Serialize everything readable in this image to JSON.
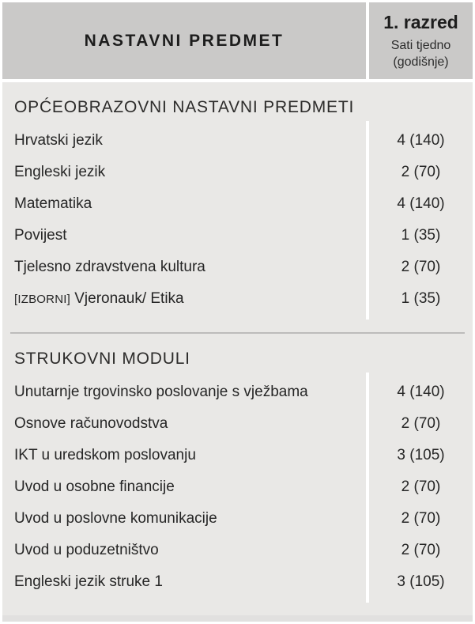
{
  "header": {
    "subject_column_title": "NASTAVNI PREDMET",
    "grade_column": {
      "title": "1. razred",
      "subtitle_line1": "Sati tjedno",
      "subtitle_line2": "(godišnje)"
    }
  },
  "sections": [
    {
      "title": "OPĆEOBRAZOVNI NASTAVNI PREDMETI",
      "rows": [
        {
          "prefix": "",
          "label": "Hrvatski jezik",
          "value": "4 (140)"
        },
        {
          "prefix": "",
          "label": "Engleski jezik",
          "value": "2 (70)"
        },
        {
          "prefix": "",
          "label": "Matematika",
          "value": "4 (140)"
        },
        {
          "prefix": "",
          "label": "Povijest",
          "value": "1 (35)"
        },
        {
          "prefix": "",
          "label": "Tjelesno zdravstvena kultura",
          "value": "2 (70)"
        },
        {
          "prefix": "[IZBORNI]",
          "label": " Vjeronauk/ Etika",
          "value": "1 (35)"
        }
      ]
    },
    {
      "title": "STRUKOVNI MODULI",
      "rows": [
        {
          "prefix": "",
          "label": "Unutarnje trgovinsko poslovanje s vježbama",
          "value": "4 (140)"
        },
        {
          "prefix": "",
          "label": "Osnove računovodstva",
          "value": "2 (70)"
        },
        {
          "prefix": "",
          "label": "IKT u uredskom poslovanju",
          "value": "3 (105)"
        },
        {
          "prefix": "",
          "label": "Uvod u osobne financije",
          "value": "2 (70)"
        },
        {
          "prefix": "",
          "label": "Uvod u poslovne komunikacije",
          "value": "2 (70)"
        },
        {
          "prefix": "",
          "label": "Uvod u poduzetništvo",
          "value": "2 (70)"
        },
        {
          "prefix": "",
          "label": "Engleski jezik struke 1",
          "value": "3 (105)"
        }
      ]
    }
  ],
  "colors": {
    "header_bg": "#cac9c8",
    "body_bg": "#e9e8e6",
    "column_divider": "#ffffff",
    "section_divider": "#bdbcbb",
    "text": "#262626"
  }
}
